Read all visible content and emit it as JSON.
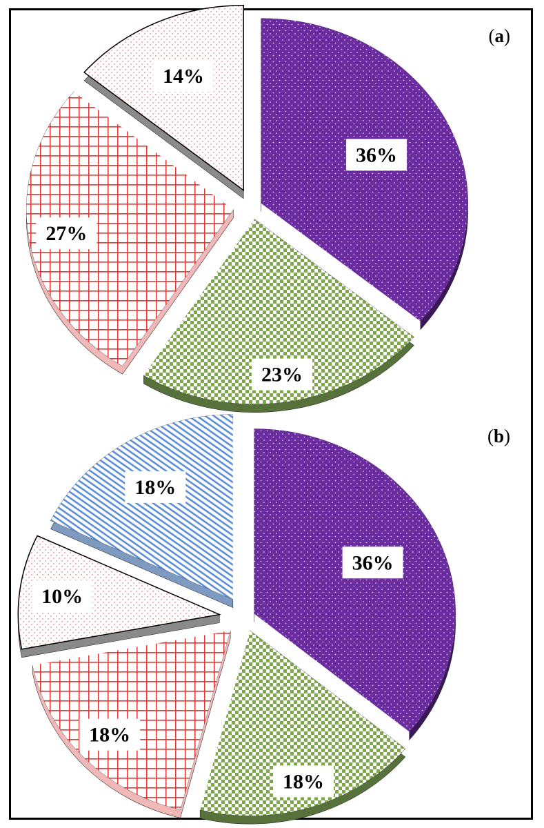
{
  "chart_data": [
    {
      "type": "pie",
      "panel_label": "a",
      "slices": [
        {
          "value": 36,
          "label": "36%",
          "color": "#6a2c9e",
          "pattern": "dots-white-on-purple"
        },
        {
          "value": 23,
          "label": "23%",
          "color": "#7ea64a",
          "pattern": "checker-green"
        },
        {
          "value": 27,
          "label": "27%",
          "color": "#e53935",
          "pattern": "grid-red"
        },
        {
          "value": 14,
          "label": "14%",
          "color": "#f08080",
          "pattern": "dots-red-light"
        }
      ]
    },
    {
      "type": "pie",
      "panel_label": "b",
      "slices": [
        {
          "value": 36,
          "label": "36%",
          "color": "#6a2c9e",
          "pattern": "dots-white-on-purple"
        },
        {
          "value": 18,
          "label": "18%",
          "color": "#7ea64a",
          "pattern": "checker-green"
        },
        {
          "value": 18,
          "label": "18%",
          "color": "#e53935",
          "pattern": "grid-red"
        },
        {
          "value": 10,
          "label": "10%",
          "color": "#f08080",
          "pattern": "dots-red-light"
        },
        {
          "value": 18,
          "label": "18%",
          "color": "#5b8ed6",
          "pattern": "diagonal-blue"
        }
      ]
    }
  ]
}
